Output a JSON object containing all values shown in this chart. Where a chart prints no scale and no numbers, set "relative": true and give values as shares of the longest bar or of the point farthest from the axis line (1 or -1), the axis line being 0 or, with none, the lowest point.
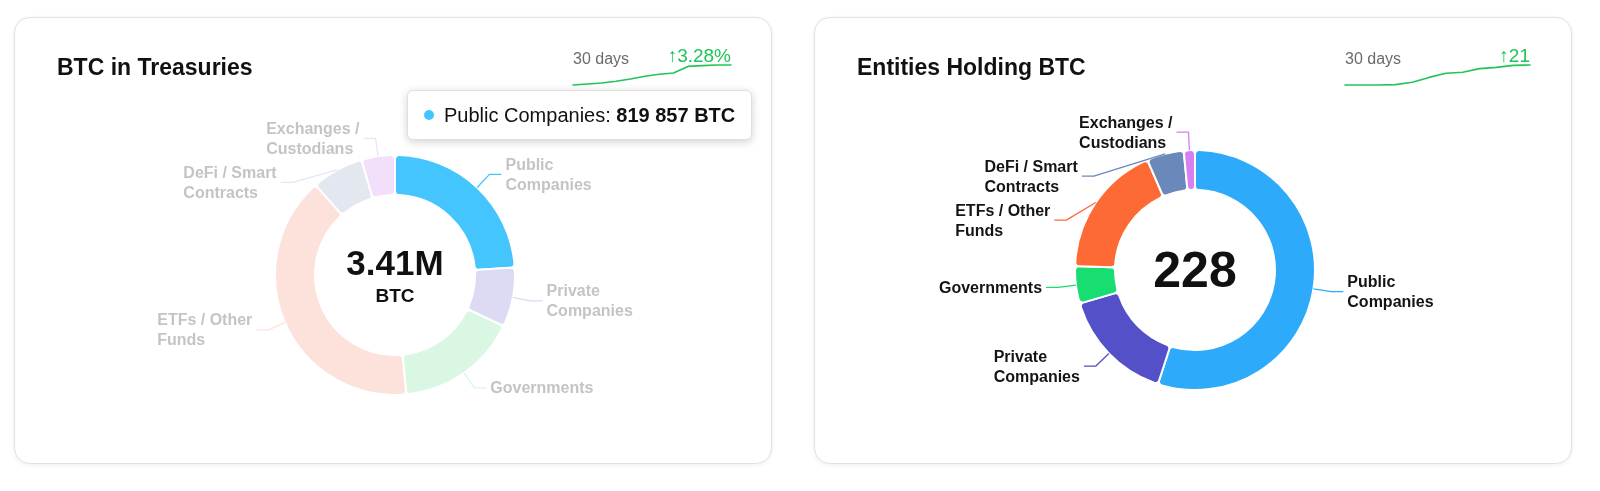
{
  "chart_data": [
    {
      "type": "donut",
      "title": "BTC in Treasuries",
      "categories": [
        "Public Companies",
        "Private Companies",
        "Governments",
        "ETFs / Other Funds",
        "DeFi / Smart Contracts",
        "Exchanges / Custodians"
      ],
      "values": [
        24,
        8,
        16.5,
        40,
        7,
        4.5
      ],
      "colors": [
        "#45c5fd",
        "#dddaf3",
        "#d9f7e3",
        "#fde2db",
        "#e3e7f0",
        "#f2dffa"
      ],
      "annotations": [
        "3.41M",
        "BTC",
        "Public Companies: 819 857 BTC"
      ]
    },
    {
      "type": "line",
      "relative": true,
      "categories": [
        null,
        null,
        null,
        null,
        null,
        null,
        null,
        null,
        null,
        null,
        null,
        null
      ],
      "values": [
        0,
        0.05,
        0.1,
        0.19,
        0.3,
        0.44,
        0.54,
        0.6,
        0.93,
        0.97,
        1,
        1
      ],
      "color": "#22c35b",
      "annotations": [
        "30 days",
        "↑3.28%"
      ]
    },
    {
      "type": "donut",
      "title": "Entities Holding BTC",
      "categories": [
        "Public Companies",
        "Private Companies",
        "Governments",
        "ETFs / Other Funds",
        "DeFi / Smart Contracts",
        "Exchanges / Custodians"
      ],
      "values": [
        55,
        15.5,
        5,
        18,
        5,
        1.5
      ],
      "colors": [
        "#2eaafa",
        "#5450c8",
        "#18de72",
        "#fd6a35",
        "#6b88bb",
        "#d57ff3"
      ],
      "annotations": [
        "228"
      ]
    },
    {
      "type": "line",
      "relative": true,
      "categories": [
        null,
        null,
        null,
        null,
        null,
        null,
        null,
        null,
        null,
        null,
        null,
        null
      ],
      "values": [
        0,
        0,
        0,
        0.02,
        0.14,
        0.38,
        0.59,
        0.64,
        0.82,
        0.88,
        0.98,
        1
      ],
      "color": "#22c35b",
      "annotations": [
        "30 days",
        "↑21"
      ]
    }
  ]
}
